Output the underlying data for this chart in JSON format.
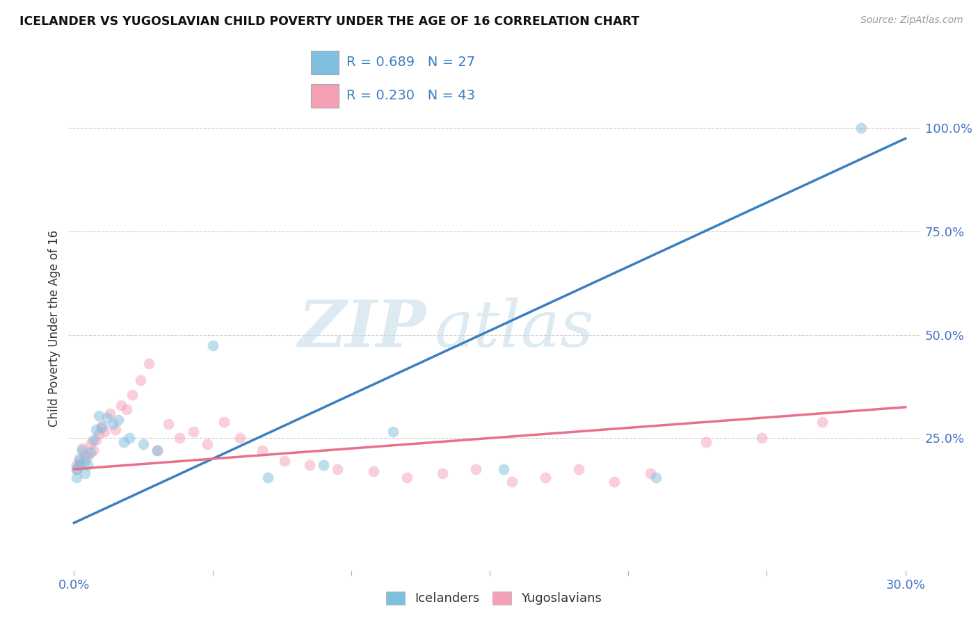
{
  "title": "ICELANDER VS YUGOSLAVIAN CHILD POVERTY UNDER THE AGE OF 16 CORRELATION CHART",
  "source": "Source: ZipAtlas.com",
  "ylabel": "Child Poverty Under the Age of 16",
  "xlim": [
    -0.002,
    0.305
  ],
  "ylim": [
    -0.07,
    1.1
  ],
  "xticks": [
    0.0,
    0.05,
    0.1,
    0.15,
    0.2,
    0.25,
    0.3
  ],
  "xticklabels": [
    "0.0%",
    "",
    "",
    "",
    "",
    "",
    "30.0%"
  ],
  "yticks_right": [
    0.25,
    0.5,
    0.75,
    1.0
  ],
  "ytick_labels_right": [
    "25.0%",
    "50.0%",
    "75.0%",
    "100.0%"
  ],
  "icelanders_color": "#7fbfdf",
  "yugoslavians_color": "#f4a0b5",
  "line_blue": "#3a7fc1",
  "line_pink": "#e8708a",
  "R_icelanders": 0.689,
  "N_icelanders": 27,
  "R_yugoslavians": 0.23,
  "N_yugoslavians": 43,
  "watermark_zip": "ZIP",
  "watermark_atlas": "atlas",
  "watermark_color": "#ccdde8",
  "icelanders_x": [
    0.001,
    0.001,
    0.002,
    0.002,
    0.003,
    0.004,
    0.004,
    0.005,
    0.006,
    0.007,
    0.008,
    0.009,
    0.01,
    0.012,
    0.014,
    0.016,
    0.018,
    0.02,
    0.025,
    0.03,
    0.05,
    0.07,
    0.09,
    0.115,
    0.155,
    0.21,
    0.284
  ],
  "icelanders_y": [
    0.175,
    0.155,
    0.2,
    0.185,
    0.22,
    0.195,
    0.165,
    0.185,
    0.215,
    0.245,
    0.27,
    0.305,
    0.275,
    0.3,
    0.285,
    0.295,
    0.24,
    0.25,
    0.235,
    0.22,
    0.475,
    0.155,
    0.185,
    0.265,
    0.175,
    0.155,
    1.0
  ],
  "yugoslavians_x": [
    0.001,
    0.001,
    0.002,
    0.002,
    0.003,
    0.004,
    0.005,
    0.006,
    0.007,
    0.008,
    0.009,
    0.01,
    0.011,
    0.013,
    0.015,
    0.017,
    0.019,
    0.021,
    0.024,
    0.027,
    0.03,
    0.034,
    0.038,
    0.043,
    0.048,
    0.054,
    0.06,
    0.068,
    0.076,
    0.085,
    0.095,
    0.108,
    0.12,
    0.133,
    0.145,
    0.158,
    0.17,
    0.182,
    0.195,
    0.208,
    0.228,
    0.248,
    0.27
  ],
  "yugoslavians_y": [
    0.185,
    0.175,
    0.195,
    0.185,
    0.225,
    0.21,
    0.205,
    0.235,
    0.22,
    0.245,
    0.26,
    0.28,
    0.265,
    0.31,
    0.27,
    0.33,
    0.32,
    0.355,
    0.39,
    0.43,
    0.22,
    0.285,
    0.25,
    0.265,
    0.235,
    0.29,
    0.25,
    0.22,
    0.195,
    0.185,
    0.175,
    0.17,
    0.155,
    0.165,
    0.175,
    0.145,
    0.155,
    0.175,
    0.145,
    0.165,
    0.24,
    0.25,
    0.29
  ],
  "blue_line_x": [
    0.0,
    0.3
  ],
  "blue_line_y": [
    0.045,
    0.975
  ],
  "pink_line_x": [
    0.0,
    0.3
  ],
  "pink_line_y": [
    0.175,
    0.325
  ],
  "grid_color": "#cccccc",
  "bg_color": "#ffffff",
  "dot_size": 130,
  "dot_alpha": 0.5
}
